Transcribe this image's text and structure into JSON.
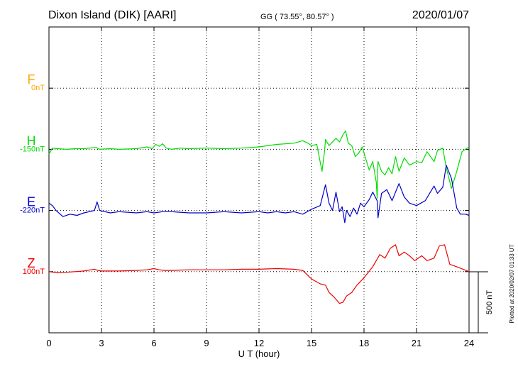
{
  "header": {
    "station": "Dixon Island (DIK)  [AARI]",
    "coords": "GG ( 73.55°,  80.57° )",
    "date": "2020/01/07"
  },
  "footer": {
    "plotted": "Plotted at 2020/02/07 01:33 UT"
  },
  "chart_data": {
    "type": "line",
    "xlabel": "U T (hour)",
    "ylabel": "",
    "xlim": [
      0,
      24
    ],
    "x_ticks": [
      "0",
      "3",
      "6",
      "9",
      "12",
      "15",
      "18",
      "21",
      "24"
    ],
    "grid": true,
    "scale_bar": {
      "label": "500 nT",
      "nT": 500
    },
    "components": [
      {
        "name": "F",
        "offset_label": "0nT",
        "color": "#ffa500",
        "trace": false
      },
      {
        "name": "H",
        "offset_label": "-150nT",
        "color": "#00dd00",
        "trace": true
      },
      {
        "name": "E",
        "offset_label": "-220nT",
        "color": "#0000cc",
        "trace": true
      },
      {
        "name": "Z",
        "offset_label": "100nT",
        "color": "#ee0000",
        "trace": true
      }
    ],
    "series": [
      {
        "name": "H",
        "x": [
          0,
          0.2,
          0.5,
          1,
          1.5,
          2,
          2.7,
          2.9,
          3.5,
          4,
          5,
          5.6,
          5.9,
          6.1,
          6.3,
          6.5,
          6.7,
          7,
          7.5,
          8,
          9,
          10,
          11,
          12,
          13,
          14,
          14.5,
          14.8,
          15,
          15.3,
          15.6,
          15.75,
          15.8,
          16,
          16.2,
          16.4,
          16.6,
          16.8,
          16.95,
          17.1,
          17.3,
          17.5,
          17.7,
          17.9,
          18.1,
          18.3,
          18.5,
          18.7,
          18.75,
          18.8,
          19,
          19.2,
          19.4,
          19.6,
          19.8,
          20,
          20.3,
          20.6,
          21,
          21.3,
          21.6,
          22,
          22.2,
          22.5,
          22.7,
          23,
          23.3,
          23.6,
          24
        ],
        "values": [
          -40,
          10,
          5,
          0,
          5,
          5,
          15,
          0,
          5,
          0,
          5,
          20,
          5,
          40,
          25,
          45,
          10,
          0,
          10,
          5,
          10,
          5,
          10,
          20,
          40,
          50,
          70,
          50,
          30,
          40,
          -180,
          -10,
          80,
          30,
          60,
          90,
          60,
          120,
          150,
          50,
          30,
          -60,
          -30,
          20,
          -80,
          -170,
          -100,
          -270,
          -400,
          -100,
          -180,
          -210,
          -150,
          -200,
          -60,
          -180,
          -70,
          -130,
          -100,
          -110,
          -20,
          -100,
          -10,
          10,
          -150,
          -320,
          -180,
          -20,
          20
        ]
      },
      {
        "name": "E",
        "x": [
          0,
          0.2,
          0.4,
          0.8,
          1.2,
          1.6,
          2,
          2.6,
          2.75,
          2.9,
          3.5,
          4,
          5,
          5.6,
          6,
          6.5,
          7,
          8,
          9,
          10,
          11,
          12,
          12.5,
          13,
          13.5,
          14,
          14.5,
          15,
          15.5,
          15.8,
          16,
          16.2,
          16.4,
          16.6,
          16.75,
          16.9,
          17,
          17.2,
          17.4,
          17.6,
          17.8,
          18,
          18.3,
          18.5,
          18.75,
          18.8,
          19,
          19.3,
          19.6,
          20,
          20.3,
          20.6,
          21,
          21.5,
          22,
          22.2,
          22.5,
          22.7,
          23,
          23.3,
          23.5,
          23.8,
          24
        ],
        "values": [
          60,
          40,
          0,
          -50,
          -30,
          -40,
          -20,
          0,
          70,
          0,
          -20,
          -10,
          -20,
          -10,
          -20,
          -10,
          -10,
          -20,
          -20,
          -10,
          -20,
          -10,
          -20,
          -10,
          -20,
          -10,
          -30,
          10,
          40,
          210,
          60,
          0,
          150,
          -10,
          30,
          -100,
          0,
          -50,
          20,
          -30,
          60,
          30,
          90,
          150,
          80,
          -60,
          140,
          170,
          80,
          220,
          110,
          60,
          40,
          80,
          200,
          140,
          190,
          370,
          260,
          20,
          -30,
          -30,
          -40
        ]
      },
      {
        "name": "Z",
        "x": [
          0,
          0.5,
          1,
          1.5,
          2,
          2.6,
          2.8,
          3,
          4,
          5,
          5.6,
          6,
          6.3,
          6.6,
          7,
          8,
          9,
          10,
          11,
          12,
          13,
          14,
          14.5,
          15,
          15.5,
          15.8,
          16,
          16.3,
          16.6,
          16.8,
          17,
          17.3,
          17.6,
          18,
          18.5,
          18.9,
          19.2,
          19.5,
          19.8,
          20,
          20.3,
          20.6,
          20.9,
          21.3,
          21.6,
          22,
          22.3,
          22.6,
          22.9,
          23.3,
          24
        ],
        "values": [
          0,
          -10,
          -5,
          0,
          5,
          20,
          10,
          5,
          5,
          10,
          15,
          25,
          15,
          10,
          10,
          15,
          15,
          15,
          20,
          20,
          25,
          20,
          10,
          -60,
          -100,
          -110,
          -170,
          -210,
          -260,
          -250,
          -200,
          -170,
          -110,
          -50,
          40,
          140,
          110,
          190,
          220,
          130,
          160,
          130,
          90,
          130,
          90,
          110,
          210,
          220,
          60,
          40,
          0
        ]
      }
    ]
  }
}
